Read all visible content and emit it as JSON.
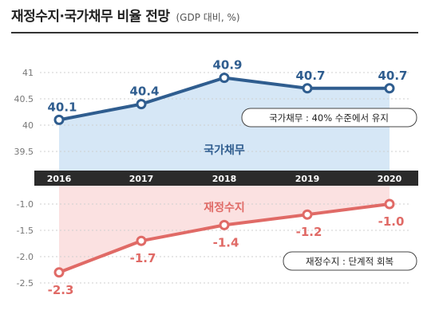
{
  "header": {
    "title": "재정수지·국가채무 비율 전망",
    "subtitle": "(GDP 대비, %)"
  },
  "chart_data": [
    {
      "type": "area",
      "name": "국가채무",
      "series_label": "국가채무",
      "annotation": "국가채무 : 40% 수준에서 유지",
      "x": [
        "2016",
        "2017",
        "2018",
        "2019",
        "2020"
      ],
      "values": [
        40.1,
        40.4,
        40.9,
        40.7,
        40.7
      ],
      "value_labels": [
        "40.1",
        "40.4",
        "40.9",
        "40.7",
        "40.7"
      ],
      "y_ticks": [
        41,
        40.5,
        40,
        39.5
      ],
      "y_tick_labels": [
        "41",
        "40.5",
        "40",
        "39.5"
      ],
      "ylim": [
        39.5,
        41.2
      ],
      "grid": true,
      "color": "#2f5d8f",
      "fill_color": "#d6e7f6"
    },
    {
      "type": "area",
      "name": "재정수지",
      "series_label": "재정수지",
      "annotation": "재정수지 : 단계적 회복",
      "x": [
        "2016",
        "2017",
        "2018",
        "2019",
        "2020"
      ],
      "values": [
        -2.3,
        -1.7,
        -1.4,
        -1.2,
        -1.0
      ],
      "value_labels": [
        "-2.3",
        "-1.7",
        "-1.4",
        "-1.2",
        "-1.0"
      ],
      "y_ticks": [
        -1.0,
        -1.5,
        -2.0,
        -2.5
      ],
      "y_tick_labels": [
        "-1.0",
        "-1.5",
        "-2.0",
        "-2.5"
      ],
      "ylim": [
        -2.5,
        -1.0
      ],
      "grid": true,
      "color": "#e06a66",
      "fill_color": "#fbe1e1"
    }
  ],
  "x_axis": {
    "labels": [
      "2016",
      "2017",
      "2018",
      "2019",
      "2020"
    ],
    "band_color": "#2b2b2b",
    "label_color": "#ffffff"
  }
}
